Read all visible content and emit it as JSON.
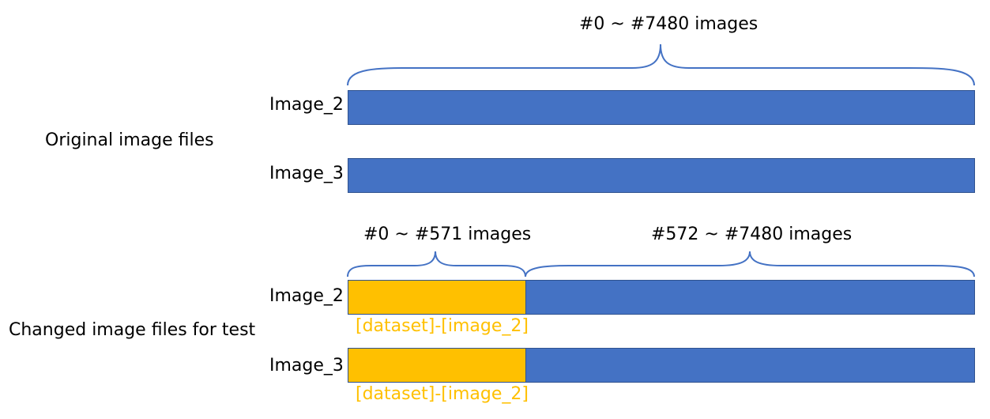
{
  "original": {
    "group_label": "Original image files",
    "range_label": "#0 ~ #7480 images",
    "rows": [
      {
        "label": "Image_2"
      },
      {
        "label": "Image_3"
      }
    ]
  },
  "changed": {
    "group_label": "Changed image files for test",
    "range_labels": [
      "#0 ~ #571 images",
      "#572 ~ #7480 images"
    ],
    "rows": [
      {
        "label": "Image_2",
        "segment_label": "[dataset]-[image_2]"
      },
      {
        "label": "Image_3",
        "segment_label": "[dataset]-[image_2]"
      }
    ]
  },
  "colors": {
    "blue": "#4472c4",
    "yellow": "#ffc000",
    "brace": "#4472c4"
  }
}
